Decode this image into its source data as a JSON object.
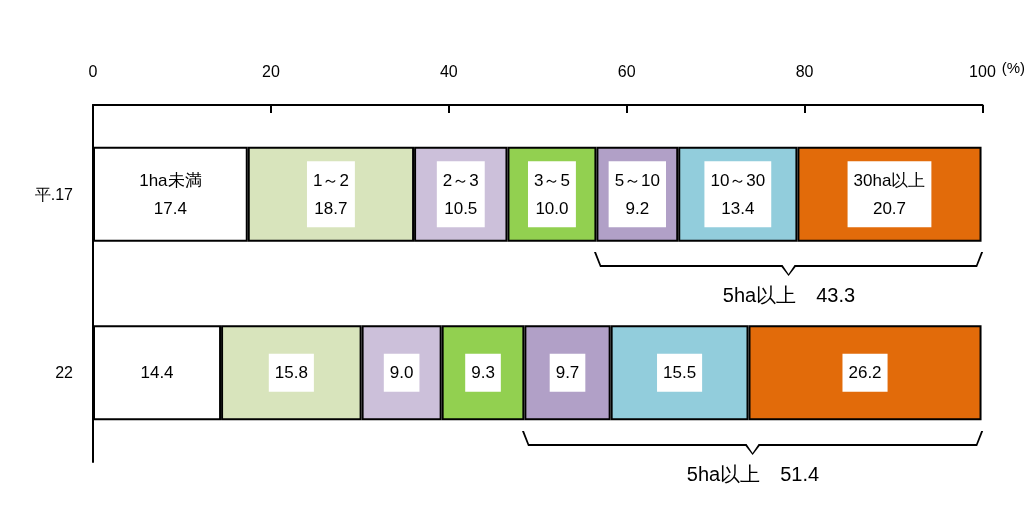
{
  "chart_data": {
    "type": "bar",
    "orientation": "horizontal",
    "stacked": true,
    "xlabel": "(%)",
    "categories": [
      "平.17",
      "22"
    ],
    "xlim": [
      0,
      100
    ],
    "xticks": [
      0,
      20,
      40,
      60,
      80,
      100
    ],
    "grid": false,
    "legend": false,
    "data_labels": true,
    "series": [
      {
        "name": "1ha未満",
        "color": "#ffffff",
        "values": [
          17.4,
          14.4
        ],
        "value_labels": [
          "17.4",
          "14.4"
        ]
      },
      {
        "name": "1～2",
        "color": "#d8e4bc",
        "values": [
          18.7,
          15.8
        ],
        "value_labels": [
          "18.7",
          "15.8"
        ]
      },
      {
        "name": "2～3",
        "color": "#ccc0da",
        "values": [
          10.5,
          9.0
        ],
        "value_labels": [
          "10.5",
          "9.0"
        ]
      },
      {
        "name": "3～5",
        "color": "#92d050",
        "values": [
          10.0,
          9.3
        ],
        "value_labels": [
          "10.0",
          "9.3"
        ]
      },
      {
        "name": "5～10",
        "color": "#b1a0c7",
        "values": [
          9.2,
          9.7
        ],
        "value_labels": [
          "9.2",
          "9.7"
        ]
      },
      {
        "name": "10～30",
        "color": "#92cddc",
        "values": [
          13.4,
          15.5
        ],
        "value_labels": [
          "13.4",
          "15.5"
        ]
      },
      {
        "name": "30ha以上",
        "color": "#e26b0a",
        "values": [
          20.7,
          26.2
        ],
        "value_labels": [
          "20.7",
          "26.2"
        ]
      }
    ],
    "annotations": [
      "5ha以上　43.3",
      "5ha以上　51.4"
    ]
  }
}
